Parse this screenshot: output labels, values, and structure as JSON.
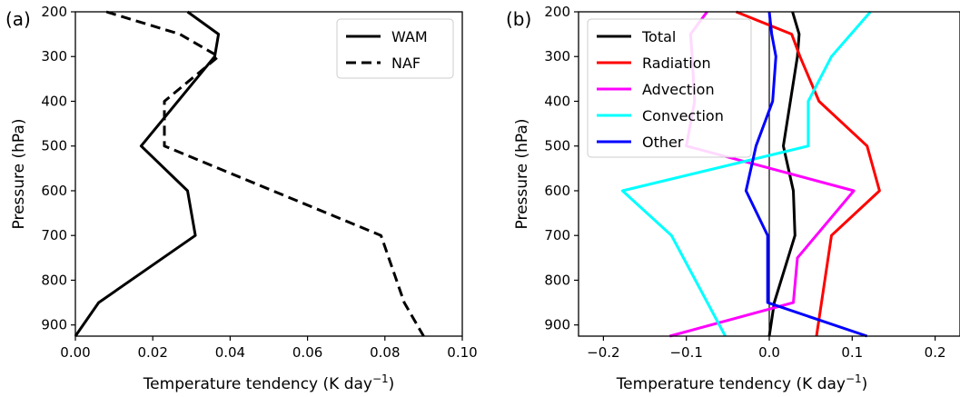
{
  "chart_data": [
    {
      "panel_label": "(a)",
      "type": "line",
      "xlabel": "Temperature tendency (K day",
      "xlabel_sup": "−1",
      "xlabel_close": ")",
      "ylabel": "Pressure (hPa)",
      "xlim": [
        0.0,
        0.1
      ],
      "ylim": [
        925,
        200
      ],
      "y_inverted": true,
      "xticks": [
        0.0,
        0.02,
        0.04,
        0.06,
        0.08,
        0.1
      ],
      "xtick_labels": [
        "0.00",
        "0.02",
        "0.04",
        "0.06",
        "0.08",
        "0.10"
      ],
      "yticks": [
        200,
        300,
        400,
        500,
        600,
        700,
        800,
        900
      ],
      "ytick_labels": [
        "200",
        "300",
        "400",
        "500",
        "600",
        "700",
        "800",
        "900"
      ],
      "legend_position": "top-right",
      "series": [
        {
          "name": "WAM",
          "color": "#000000",
          "dash": "solid",
          "x": [
            0.029,
            0.037,
            0.036,
            0.017,
            0.029,
            0.031,
            0.006,
            0.0
          ],
          "y": [
            200,
            250,
            300,
            500,
            600,
            700,
            850,
            925
          ]
        },
        {
          "name": "NAF",
          "color": "#000000",
          "dash": "dashed",
          "x": [
            0.008,
            0.027,
            0.037,
            0.023,
            0.023,
            0.023,
            0.079,
            0.085,
            0.09
          ],
          "y": [
            200,
            250,
            300,
            400,
            480,
            500,
            700,
            850,
            925
          ]
        }
      ]
    },
    {
      "panel_label": "(b)",
      "type": "line",
      "xlabel": "Temperature tendency (K day",
      "xlabel_sup": "−1",
      "xlabel_close": ")",
      "ylabel": "Pressure (hPa)",
      "xlim": [
        -0.23,
        0.23
      ],
      "ylim": [
        925,
        200
      ],
      "y_inverted": true,
      "xticks": [
        -0.2,
        -0.1,
        0.0,
        0.1,
        0.2
      ],
      "xtick_labels": [
        "−0.2",
        "−0.1",
        "0.0",
        "0.1",
        "0.2"
      ],
      "yticks": [
        200,
        300,
        400,
        500,
        600,
        700,
        800,
        900
      ],
      "ytick_labels": [
        "200",
        "300",
        "400",
        "500",
        "600",
        "700",
        "800",
        "900"
      ],
      "zero_line": true,
      "legend_position": "top-left",
      "series": [
        {
          "name": "Total",
          "color": "#000000",
          "x": [
            0.028,
            0.036,
            0.034,
            0.017,
            0.029,
            0.031,
            0.006,
            0.0
          ],
          "y": [
            200,
            250,
            300,
            500,
            600,
            700,
            850,
            925
          ]
        },
        {
          "name": "Radiation",
          "color": "#ff0000",
          "x": [
            -0.04,
            0.027,
            0.037,
            0.06,
            0.118,
            0.133,
            0.075,
            0.057
          ],
          "y": [
            200,
            250,
            300,
            400,
            500,
            600,
            700,
            925
          ]
        },
        {
          "name": "Advection",
          "color": "#ff00ff",
          "x": [
            -0.075,
            -0.095,
            -0.093,
            -0.09,
            -0.1,
            0.102,
            0.034,
            0.029,
            -0.12
          ],
          "y": [
            200,
            250,
            300,
            400,
            500,
            600,
            750,
            850,
            925
          ]
        },
        {
          "name": "Convection",
          "color": "#00ffff",
          "x": [
            0.122,
            0.075,
            0.047,
            0.047,
            -0.177,
            -0.118,
            -0.053
          ],
          "y": [
            200,
            300,
            400,
            500,
            600,
            700,
            925
          ]
        },
        {
          "name": "Other",
          "color": "#0000ff",
          "x": [
            0.0,
            0.003,
            0.008,
            0.004,
            -0.016,
            -0.028,
            -0.002,
            -0.002,
            0.118
          ],
          "y": [
            200,
            250,
            300,
            400,
            500,
            600,
            700,
            850,
            925
          ]
        }
      ]
    }
  ]
}
